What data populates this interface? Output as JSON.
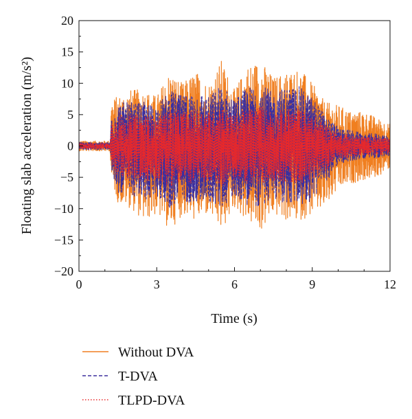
{
  "chart_data": {
    "type": "line",
    "title": "",
    "xlabel": "Time (s)",
    "ylabel": "Floating slab acceleration (m/s²)",
    "xlim": [
      0,
      12
    ],
    "ylim": [
      -20,
      20
    ],
    "x_ticks": [
      0,
      3,
      6,
      9,
      12
    ],
    "y_ticks": [
      -20,
      -15,
      -10,
      -5,
      0,
      5,
      10,
      15,
      20
    ],
    "grid": false,
    "legend": "below",
    "series": [
      {
        "name": "Without DVA",
        "color": "#f07f20",
        "style": "solid",
        "x": [
          0,
          1.2,
          1.25,
          1.5,
          2.0,
          2.5,
          3.0,
          3.5,
          4.0,
          4.5,
          5.0,
          5.5,
          6.0,
          6.5,
          7.0,
          7.5,
          8.0,
          8.5,
          9.0,
          9.5,
          10.0,
          10.5,
          11.0,
          11.5,
          12.0
        ],
        "envelope_max": [
          0.8,
          0.8,
          7.5,
          8,
          9,
          9,
          8,
          12,
          10,
          12,
          10,
          13.8,
          9,
          13,
          13.8,
          11,
          12,
          12.5,
          10,
          7,
          6.5,
          5.5,
          5.5,
          4.5,
          3.5
        ],
        "envelope_min": [
          -0.8,
          -0.8,
          -5.5,
          -9,
          -10,
          -12,
          -11,
          -13.5,
          -11,
          -12,
          -11,
          -13.8,
          -10,
          -12,
          -13.8,
          -11,
          -12,
          -12,
          -11,
          -10,
          -7,
          -6,
          -5.5,
          -5,
          -3.5
        ]
      },
      {
        "name": "T-DVA",
        "color": "#3b2f9e",
        "style": "dashed",
        "x": [
          0,
          1.2,
          1.25,
          1.5,
          2.0,
          2.5,
          3.0,
          3.5,
          4.0,
          4.5,
          5.0,
          5.5,
          6.0,
          6.5,
          7.0,
          7.5,
          8.0,
          8.5,
          9.0,
          9.5,
          10.0,
          10.5,
          11.0,
          11.5,
          12.0
        ],
        "envelope_max": [
          0.6,
          0.6,
          6,
          7,
          7,
          7,
          6.5,
          9,
          8,
          9,
          8,
          10,
          7.5,
          9.5,
          10,
          8.5,
          9.5,
          9.5,
          8,
          5,
          3,
          2.5,
          2,
          2,
          1.5
        ],
        "envelope_min": [
          -0.6,
          -0.6,
          -4.5,
          -7.5,
          -8,
          -9,
          -8,
          -10,
          -9,
          -9,
          -9,
          -10,
          -8,
          -9.5,
          -10,
          -8.5,
          -9.5,
          -9.5,
          -9,
          -6,
          -3,
          -2.5,
          -2,
          -2,
          -1.5
        ]
      },
      {
        "name": "TLPD-DVA",
        "color": "#e8282a",
        "style": "dotted",
        "x": [
          0,
          1.2,
          1.25,
          1.5,
          2.0,
          2.5,
          3.0,
          3.5,
          4.0,
          4.5,
          5.0,
          5.5,
          6.0,
          6.5,
          7.0,
          7.5,
          8.0,
          8.5,
          9.0,
          9.5,
          10.0,
          10.5,
          11.0,
          11.5,
          12.0
        ],
        "envelope_max": [
          0.5,
          0.5,
          4,
          5,
          5,
          5,
          4.5,
          6,
          5.5,
          6,
          5.5,
          6.5,
          5,
          6,
          6.5,
          5.5,
          6,
          6,
          5,
          3.5,
          2,
          1.8,
          1.5,
          1.5,
          1.2
        ],
        "envelope_min": [
          -0.5,
          -0.5,
          -3.5,
          -5,
          -5.5,
          -6,
          -5.5,
          -6.5,
          -6,
          -6,
          -6,
          -6.5,
          -5.5,
          -6,
          -6.5,
          -5.5,
          -6,
          -6,
          -5.5,
          -4,
          -2,
          -1.8,
          -1.5,
          -1.5,
          -1.2
        ]
      }
    ]
  }
}
